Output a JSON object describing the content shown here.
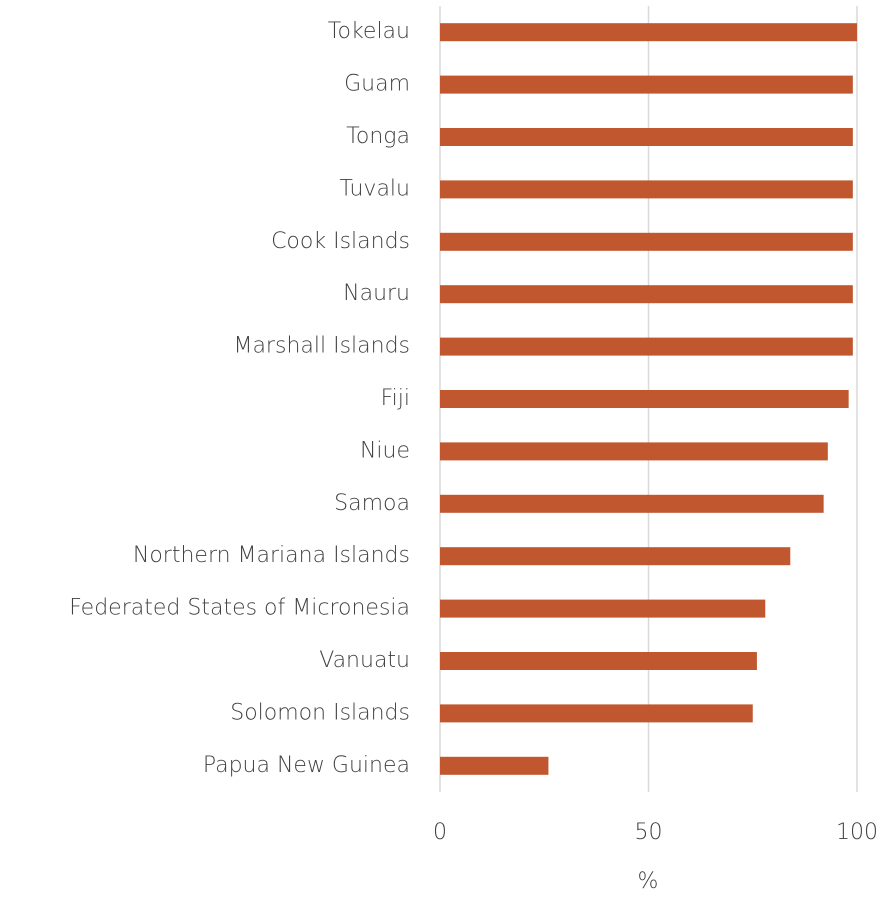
{
  "chart_data": {
    "type": "barh",
    "categories": [
      "Tokelau",
      "Guam",
      "Tonga",
      "Tuvalu",
      "Cook Islands",
      "Nauru",
      "Marshall Islands",
      "Fiji",
      "Niue",
      "Samoa",
      "Northern Mariana Islands",
      "Federated States of Micronesia",
      "Vanuatu",
      "Solomon Islands",
      "Papua New Guinea"
    ],
    "values": [
      100,
      99,
      99,
      99,
      99,
      99,
      99,
      98,
      93,
      92,
      84,
      78,
      76,
      75,
      26
    ],
    "color": "#c0572f",
    "xlabel": "%",
    "xlim": [
      0,
      100
    ],
    "xticks": [
      0,
      50,
      100
    ],
    "grid": true
  }
}
